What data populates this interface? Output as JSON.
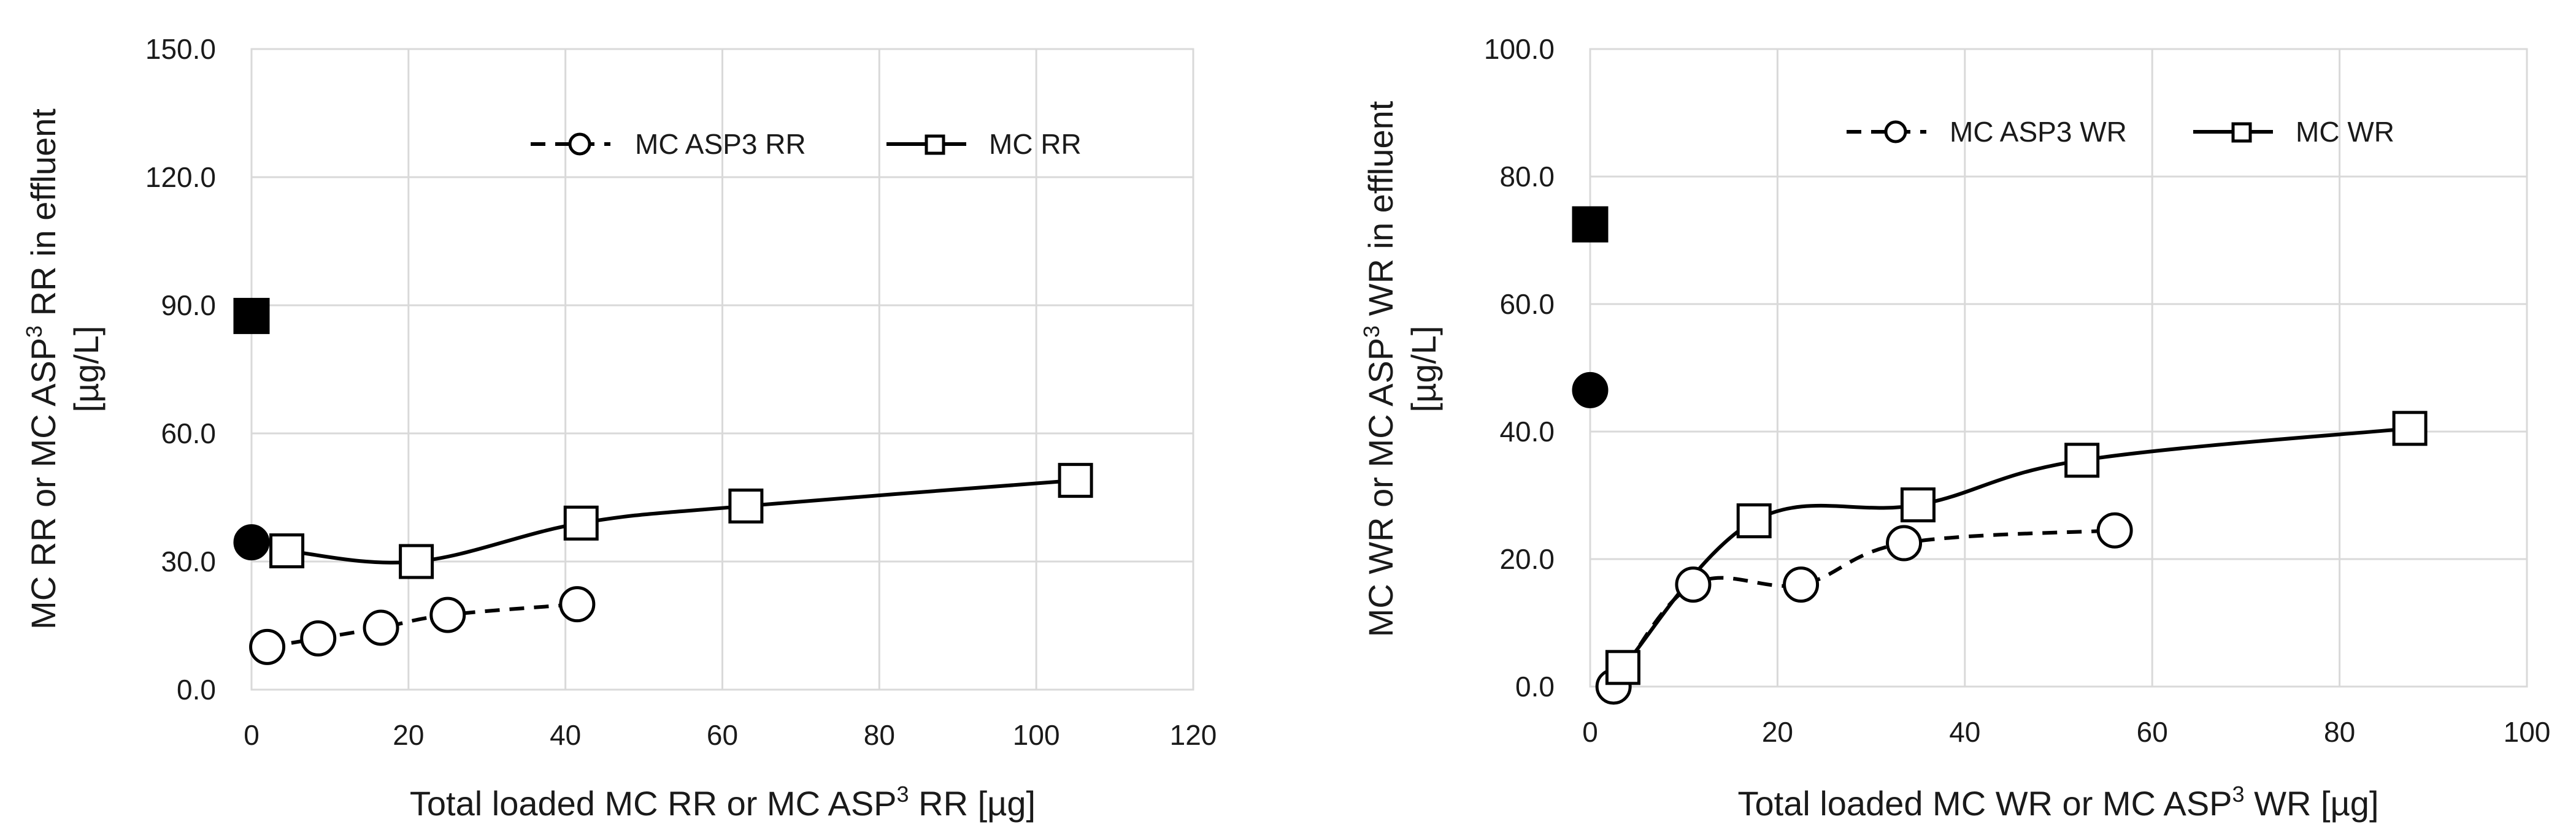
{
  "chart_data": [
    {
      "type": "line",
      "title": "",
      "xlabel_parts": [
        "Total loaded MC RR or MC ASP",
        "3",
        " RR  [µg]"
      ],
      "ylabel_line1_parts": [
        "MC  RR or MC ASP",
        "3",
        " RR  in effluent"
      ],
      "ylabel_line2": "[µg/L]",
      "xlim": [
        0,
        120
      ],
      "ylim": [
        0,
        150
      ],
      "xticks": [
        "0",
        "20",
        "40",
        "60",
        "80",
        "100",
        "120"
      ],
      "yticks": [
        "0.0",
        "30.0",
        "60.0",
        "90.0",
        "120.0",
        "150.0"
      ],
      "series": [
        {
          "name": "MC ASP3 RR",
          "line": "dashed",
          "marker": "open-circle",
          "x": [
            2,
            8.5,
            16.5,
            25,
            41.5
          ],
          "y": [
            10,
            12,
            14.5,
            17.5,
            20
          ]
        },
        {
          "name": "MC RR",
          "line": "solid",
          "marker": "open-square",
          "x": [
            4.5,
            21,
            42,
            63,
            105
          ],
          "y": [
            32.5,
            30,
            39,
            43,
            49
          ]
        }
      ],
      "standalone_points": [
        {
          "marker": "filled-square",
          "x": 0,
          "y": 87.5
        },
        {
          "marker": "filled-circle",
          "x": 0,
          "y": 34.5
        }
      ]
    },
    {
      "type": "line",
      "title": "",
      "xlabel_parts": [
        "Total loaded MC WR or MC ASP",
        "3",
        " WR  [µg]"
      ],
      "ylabel_line1_parts": [
        "MC  WR or MC ASP",
        "3",
        " WR  in effluent"
      ],
      "ylabel_line2": "[µg/L]",
      "xlim": [
        0,
        100
      ],
      "ylim": [
        0,
        100
      ],
      "xticks": [
        "0",
        "20",
        "40",
        "60",
        "80",
        "100"
      ],
      "yticks": [
        "0.0",
        "20.0",
        "40.0",
        "60.0",
        "80.0",
        "100.0"
      ],
      "series": [
        {
          "name": "MC ASP3 WR",
          "line": "dashed",
          "marker": "open-circle",
          "x": [
            2.5,
            11,
            22.5,
            33.5,
            56
          ],
          "y": [
            0,
            16,
            16,
            22.5,
            24.5
          ]
        },
        {
          "name": "MC WR",
          "line": "solid",
          "marker": "open-square",
          "x": [
            3.5,
            17.5,
            35,
            52.5,
            87.5
          ],
          "y": [
            3,
            26,
            28.5,
            35.5,
            40.5
          ]
        }
      ],
      "standalone_points": [
        {
          "marker": "filled-square",
          "x": 0,
          "y": 72.5
        },
        {
          "marker": "filled-circle",
          "x": 0,
          "y": 46.5
        }
      ]
    }
  ]
}
